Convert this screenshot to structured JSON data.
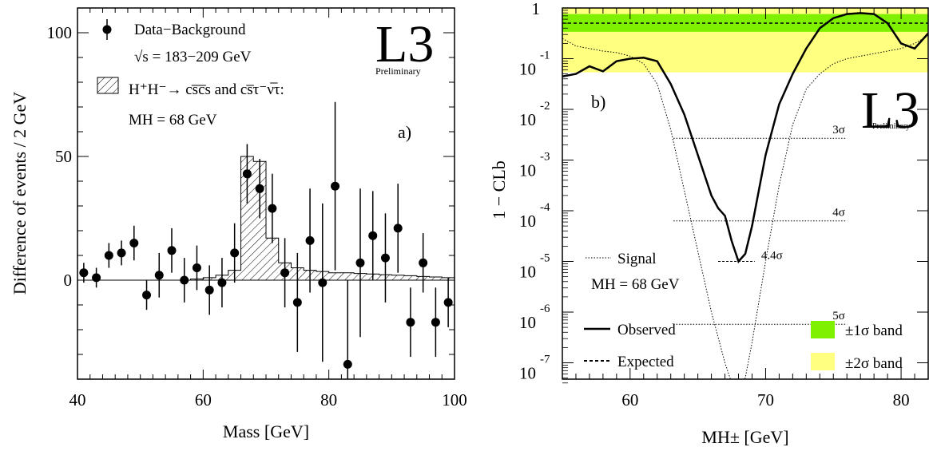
{
  "chart_data": [
    {
      "type": "scatter",
      "panel_label": "a)",
      "logo": "L3",
      "logo_subtitle": "Preliminary",
      "xlabel": "Mass   [GeV]",
      "ylabel": "Difference of events / 2 GeV",
      "xlim": [
        40,
        100
      ],
      "ylim": [
        -40,
        110
      ],
      "x_ticks": [
        "40",
        "60",
        "80",
        "100"
      ],
      "y_ticks": [
        "0",
        "50",
        "100"
      ],
      "legend": {
        "data_label": "Data−Background",
        "sqrt_s_label": "√s = 183−209 GeV",
        "signal_label": "H⁺H⁻→ cs̅c̅s and cs̅τ⁻ν̅τ:",
        "mass_label": "MH = 68  GeV"
      },
      "series": [
        {
          "name": "Data−Background",
          "points": [
            {
              "x": 41,
              "y": 3,
              "err": 4
            },
            {
              "x": 43,
              "y": 1,
              "err": 4
            },
            {
              "x": 45,
              "y": 10,
              "err": 5
            },
            {
              "x": 47,
              "y": 11,
              "err": 5
            },
            {
              "x": 49,
              "y": 15,
              "err": 7
            },
            {
              "x": 51,
              "y": -6,
              "err": 6
            },
            {
              "x": 53,
              "y": 2,
              "err": 9
            },
            {
              "x": 55,
              "y": 12,
              "err": 9
            },
            {
              "x": 57,
              "y": 0,
              "err": 9
            },
            {
              "x": 59,
              "y": 5,
              "err": 9
            },
            {
              "x": 61,
              "y": -4,
              "err": 10
            },
            {
              "x": 63,
              "y": -1,
              "err": 10
            },
            {
              "x": 65,
              "y": 11,
              "err": 12
            },
            {
              "x": 67,
              "y": 43,
              "err": 12
            },
            {
              "x": 69,
              "y": 37,
              "err": 12
            },
            {
              "x": 71,
              "y": 29,
              "err": 14
            },
            {
              "x": 73,
              "y": 3,
              "err": 14
            },
            {
              "x": 75,
              "y": -9,
              "err": 20
            },
            {
              "x": 77,
              "y": 16,
              "err": 21
            },
            {
              "x": 79,
              "y": -1,
              "err": 32
            },
            {
              "x": 81,
              "y": 38,
              "err": 34
            },
            {
              "x": 83,
              "y": -34,
              "err": 34
            },
            {
              "x": 85,
              "y": 7,
              "err": 30
            },
            {
              "x": 87,
              "y": 18,
              "err": 18
            },
            {
              "x": 89,
              "y": 9,
              "err": 18
            },
            {
              "x": 91,
              "y": 21,
              "err": 18
            },
            {
              "x": 93,
              "y": -17,
              "err": 14
            },
            {
              "x": 95,
              "y": 7,
              "err": 12
            },
            {
              "x": 97,
              "y": -17,
              "err": 14
            },
            {
              "x": 99,
              "y": -9,
              "err": 10
            }
          ]
        },
        {
          "name": "H⁺H⁻ signal (hatched)",
          "type": "step",
          "bin_width": 2,
          "bins": [
            {
              "x": 40,
              "y": 0
            },
            {
              "x": 42,
              "y": 0
            },
            {
              "x": 44,
              "y": 0
            },
            {
              "x": 46,
              "y": 0
            },
            {
              "x": 48,
              "y": 0
            },
            {
              "x": 50,
              "y": 0
            },
            {
              "x": 52,
              "y": 0
            },
            {
              "x": 54,
              "y": 0
            },
            {
              "x": 56,
              "y": 0
            },
            {
              "x": 58,
              "y": 0.5
            },
            {
              "x": 60,
              "y": 1
            },
            {
              "x": 62,
              "y": 2
            },
            {
              "x": 64,
              "y": 4
            },
            {
              "x": 66,
              "y": 50
            },
            {
              "x": 68,
              "y": 48
            },
            {
              "x": 70,
              "y": 17
            },
            {
              "x": 72,
              "y": 7
            },
            {
              "x": 74,
              "y": 5
            },
            {
              "x": 76,
              "y": 4
            },
            {
              "x": 78,
              "y": 3.5
            },
            {
              "x": 80,
              "y": 3
            },
            {
              "x": 82,
              "y": 3
            },
            {
              "x": 84,
              "y": 2.7
            },
            {
              "x": 86,
              "y": 2.5
            },
            {
              "x": 88,
              "y": 2.2
            },
            {
              "x": 90,
              "y": 2
            },
            {
              "x": 92,
              "y": 1.8
            },
            {
              "x": 94,
              "y": 1.5
            },
            {
              "x": 96,
              "y": 1.3
            },
            {
              "x": 98,
              "y": 1
            }
          ]
        }
      ]
    },
    {
      "type": "line",
      "panel_label": "b)",
      "logo": "L3",
      "logo_subtitle": "Preliminary",
      "xlabel": "MH±   [GeV]",
      "ylabel": "1 − CLb",
      "xlim": [
        55,
        82
      ],
      "y_scale": "log",
      "ylim_exponent": [
        -8,
        0
      ],
      "x_ticks": [
        "60",
        "70",
        "80"
      ],
      "y_tick_labels": [
        {
          "base": "1",
          "exp": ""
        },
        {
          "base": "10",
          "exp": "-1"
        },
        {
          "base": "10",
          "exp": "-2"
        },
        {
          "base": "10",
          "exp": "-3"
        },
        {
          "base": "10",
          "exp": "-4"
        },
        {
          "base": "10",
          "exp": "-5"
        },
        {
          "base": "10",
          "exp": "-6"
        },
        {
          "base": "10",
          "exp": "-7"
        }
      ],
      "colors": {
        "band_1sigma": "#7ff000",
        "band_2sigma": "#ffff80"
      },
      "bands": {
        "band_1sigma_log10": [
          -0.47,
          -0.12
        ],
        "band_2sigma_log10": [
          -1.27,
          0.0
        ]
      },
      "sigma_lines": [
        {
          "label": "3σ",
          "log10": -2.57,
          "xmin": 63.2,
          "xmax": 76
        },
        {
          "label": "4σ",
          "log10": -4.2,
          "xmin": 63.2,
          "xmax": 76
        },
        {
          "label": "4.4σ",
          "log10": -5.0,
          "xmin": 66.5,
          "xmax": 69.2
        },
        {
          "label": "5σ",
          "log10": -6.24,
          "xmin": 63.2,
          "xmax": 76
        }
      ],
      "legend": {
        "signal_label": "Signal",
        "signal_mass": "MH = 68 GeV",
        "observed_label": "Observed",
        "expected_label": "Expected",
        "band1_label": "±1σ band",
        "band2_label": "±2σ band"
      },
      "series": [
        {
          "name": "Observed",
          "x": [
            55,
            56,
            57,
            58,
            59,
            60,
            61,
            62,
            63,
            64,
            65,
            66,
            66.5,
            67,
            67.5,
            68,
            68.5,
            69,
            69.5,
            70,
            71,
            72,
            73,
            74,
            75,
            76,
            77,
            78,
            79,
            80,
            81,
            82
          ],
          "log10": [
            -1.35,
            -1.3,
            -1.15,
            -1.25,
            -1.05,
            -1.0,
            -0.98,
            -1.05,
            -1.5,
            -2.1,
            -2.9,
            -3.7,
            -3.95,
            -4.1,
            -4.6,
            -5.0,
            -4.85,
            -4.3,
            -3.6,
            -2.9,
            -1.9,
            -1.3,
            -0.8,
            -0.4,
            -0.2,
            -0.12,
            -0.1,
            -0.12,
            -0.3,
            -0.7,
            -0.8,
            -0.5
          ]
        },
        {
          "name": "Expected",
          "x": [
            55,
            56,
            57,
            58,
            59,
            60,
            61,
            62,
            63,
            64,
            65,
            66,
            67,
            68,
            69,
            70,
            71,
            72,
            73,
            74,
            75,
            76,
            77,
            78,
            79,
            80,
            81,
            82
          ],
          "log10": [
            -0.3,
            -0.3,
            -0.3,
            -0.3,
            -0.3,
            -0.3,
            -0.3,
            -0.3,
            -0.3,
            -0.3,
            -0.3,
            -0.3,
            -0.3,
            -0.3,
            -0.3,
            -0.3,
            -0.3,
            -0.3,
            -0.3,
            -0.3,
            -0.3,
            -0.3,
            -0.3,
            -0.3,
            -0.3,
            -0.3,
            -0.3,
            -0.3
          ]
        },
        {
          "name": "Signal",
          "x": [
            55,
            56,
            57,
            58,
            59,
            60,
            61,
            62,
            63,
            64,
            65,
            66,
            67,
            67.5,
            68,
            68.5,
            69,
            70,
            71,
            72,
            73,
            74,
            75,
            76,
            77,
            78,
            79,
            80,
            81,
            82
          ],
          "log10": [
            -0.6,
            -0.75,
            -0.8,
            -0.85,
            -0.88,
            -0.95,
            -1.1,
            -1.5,
            -2.4,
            -3.6,
            -4.8,
            -6.0,
            -7.0,
            -7.4,
            -7.5,
            -7.3,
            -6.6,
            -5.0,
            -3.5,
            -2.3,
            -1.6,
            -1.3,
            -1.1,
            -1.0,
            -0.95,
            -0.9,
            -0.85,
            -0.8,
            -0.7,
            -0.55
          ]
        }
      ]
    }
  ]
}
